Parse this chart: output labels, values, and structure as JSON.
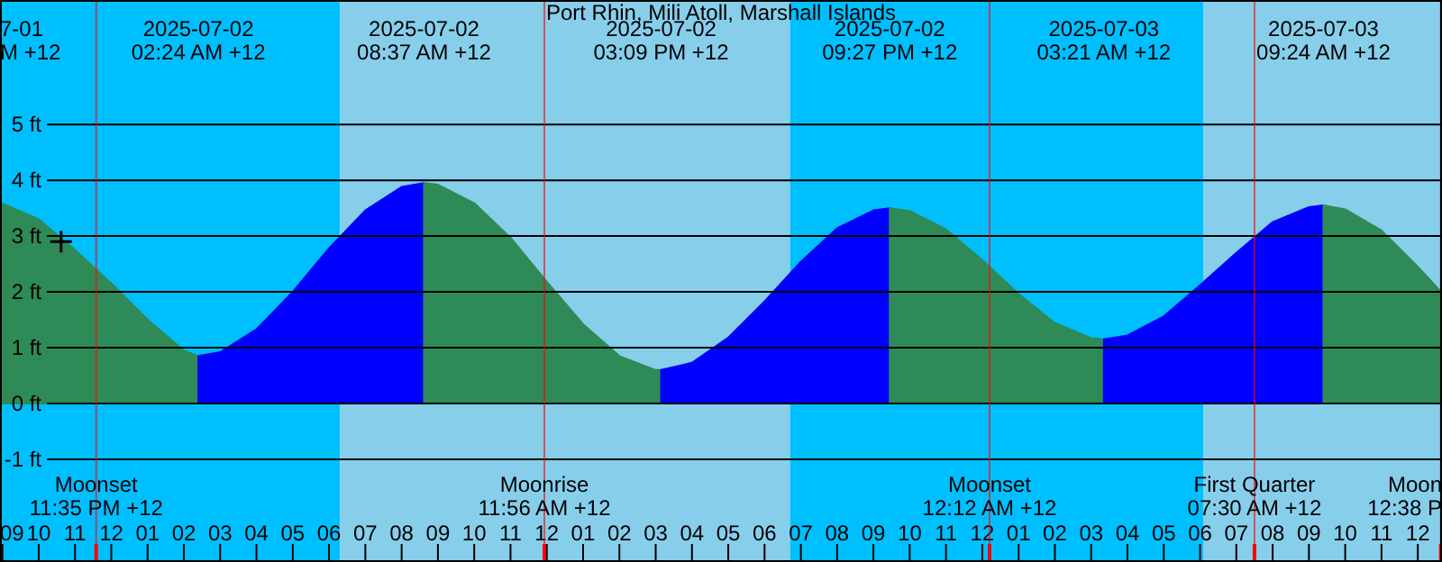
{
  "chart_data": {
    "type": "area",
    "title": "Port Rhin, Mili Atoll, Marshall Islands",
    "xlim": [
      "2025-07-01T20:56",
      "2025-07-03T12:40"
    ],
    "ylim": [
      -2.84,
      7.23
    ],
    "xticks": [
      {
        "value": "2025-07-01T21:00",
        "label": "09"
      },
      {
        "value": "2025-07-01T22:00",
        "label": "10"
      },
      {
        "value": "2025-07-01T23:00",
        "label": "11"
      },
      {
        "value": "2025-07-02T00:00",
        "label": "12"
      },
      {
        "value": "2025-07-02T01:00",
        "label": "01"
      },
      {
        "value": "2025-07-02T02:00",
        "label": "02"
      },
      {
        "value": "2025-07-02T03:00",
        "label": "03"
      },
      {
        "value": "2025-07-02T04:00",
        "label": "04"
      },
      {
        "value": "2025-07-02T05:00",
        "label": "05"
      },
      {
        "value": "2025-07-02T06:00",
        "label": "06"
      },
      {
        "value": "2025-07-02T07:00",
        "label": "07"
      },
      {
        "value": "2025-07-02T08:00",
        "label": "08"
      },
      {
        "value": "2025-07-02T09:00",
        "label": "09"
      },
      {
        "value": "2025-07-02T10:00",
        "label": "10"
      },
      {
        "value": "2025-07-02T11:00",
        "label": "11"
      },
      {
        "value": "2025-07-02T12:00",
        "label": "12"
      },
      {
        "value": "2025-07-02T13:00",
        "label": "01"
      },
      {
        "value": "2025-07-02T14:00",
        "label": "02"
      },
      {
        "value": "2025-07-02T15:00",
        "label": "03"
      },
      {
        "value": "2025-07-02T16:00",
        "label": "04"
      },
      {
        "value": "2025-07-02T17:00",
        "label": "05"
      },
      {
        "value": "2025-07-02T18:00",
        "label": "06"
      },
      {
        "value": "2025-07-02T19:00",
        "label": "07"
      },
      {
        "value": "2025-07-02T20:00",
        "label": "08"
      },
      {
        "value": "2025-07-02T21:00",
        "label": "09"
      },
      {
        "value": "2025-07-02T22:00",
        "label": "10"
      },
      {
        "value": "2025-07-02T23:00",
        "label": "11"
      },
      {
        "value": "2025-07-03T00:00",
        "label": "12"
      },
      {
        "value": "2025-07-03T01:00",
        "label": "01"
      },
      {
        "value": "2025-07-03T02:00",
        "label": "02"
      },
      {
        "value": "2025-07-03T03:00",
        "label": "03"
      },
      {
        "value": "2025-07-03T04:00",
        "label": "04"
      },
      {
        "value": "2025-07-03T05:00",
        "label": "05"
      },
      {
        "value": "2025-07-03T06:00",
        "label": "06"
      },
      {
        "value": "2025-07-03T07:00",
        "label": "07"
      },
      {
        "value": "2025-07-03T08:00",
        "label": "08"
      },
      {
        "value": "2025-07-03T09:00",
        "label": "09"
      },
      {
        "value": "2025-07-03T10:00",
        "label": "10"
      },
      {
        "value": "2025-07-03T11:00",
        "label": "11"
      },
      {
        "value": "2025-07-03T12:00",
        "label": "12"
      }
    ],
    "yticks": [
      {
        "value": -1,
        "label": "-1 ft"
      },
      {
        "value": 0,
        "label": "0 ft"
      },
      {
        "value": 1,
        "label": "1 ft"
      },
      {
        "value": 2,
        "label": "2 ft"
      },
      {
        "value": 3,
        "label": "3 ft"
      },
      {
        "value": 4,
        "label": "4 ft"
      },
      {
        "value": 5,
        "label": "5 ft"
      }
    ],
    "grid": "y",
    "bands": [
      {
        "axis": "x",
        "from": "2025-07-01T20:56",
        "to": "2025-07-02T06:18",
        "color": "#00bfff"
      },
      {
        "axis": "x",
        "from": "2025-07-02T06:18",
        "to": "2025-07-02T18:42",
        "color": "#87ceeb"
      },
      {
        "axis": "x",
        "from": "2025-07-02T18:42",
        "to": "2025-07-03T06:06",
        "color": "#00bfff"
      },
      {
        "axis": "x",
        "from": "2025-07-03T06:06",
        "to": "2025-07-03T12:40",
        "color": "#87ceeb"
      }
    ],
    "series": [
      {
        "color": "#2e8b57",
        "x": [
          "2025-07-01T20:56",
          "2025-07-01T22:00",
          "2025-07-01T23:00",
          "2025-07-02T00:00",
          "2025-07-02T01:00",
          "2025-07-02T02:00",
          "2025-07-02T02:24"
        ],
        "values": [
          3.6,
          3.3,
          2.75,
          2.15,
          1.5,
          0.95,
          0.85
        ]
      },
      {
        "color": "#0000ff",
        "x": [
          "2025-07-02T02:24",
          "2025-07-02T03:00",
          "2025-07-02T04:00",
          "2025-07-02T05:00",
          "2025-07-02T06:00",
          "2025-07-02T07:00",
          "2025-07-02T08:00",
          "2025-07-02T08:37"
        ],
        "values": [
          0.85,
          0.92,
          1.33,
          2.0,
          2.78,
          3.46,
          3.88,
          3.95
        ]
      },
      {
        "color": "#2e8b57",
        "x": [
          "2025-07-02T08:37",
          "2025-07-02T09:00",
          "2025-07-02T10:00",
          "2025-07-02T11:00",
          "2025-07-02T12:00",
          "2025-07-02T13:00",
          "2025-07-02T14:00",
          "2025-07-02T15:00",
          "2025-07-02T15:09"
        ],
        "values": [
          3.95,
          3.92,
          3.59,
          2.97,
          2.18,
          1.42,
          0.85,
          0.6,
          0.6
        ]
      },
      {
        "color": "#0000ff",
        "x": [
          "2025-07-02T15:09",
          "2025-07-02T16:00",
          "2025-07-02T17:00",
          "2025-07-02T18:00",
          "2025-07-02T19:00",
          "2025-07-02T20:00",
          "2025-07-02T21:00",
          "2025-07-02T21:27"
        ],
        "values": [
          0.6,
          0.73,
          1.18,
          1.83,
          2.54,
          3.14,
          3.46,
          3.5
        ]
      },
      {
        "color": "#2e8b57",
        "x": [
          "2025-07-02T21:27",
          "2025-07-02T22:00",
          "2025-07-02T23:00",
          "2025-07-03T00:00",
          "2025-07-03T01:00",
          "2025-07-03T02:00",
          "2025-07-03T03:00",
          "2025-07-03T03:21"
        ],
        "values": [
          3.5,
          3.45,
          3.12,
          2.57,
          1.96,
          1.44,
          1.17,
          1.15
        ]
      },
      {
        "color": "#0000ff",
        "x": [
          "2025-07-03T03:21",
          "2025-07-03T04:00",
          "2025-07-03T05:00",
          "2025-07-03T06:00",
          "2025-07-03T07:00",
          "2025-07-03T08:00",
          "2025-07-03T09:00",
          "2025-07-03T09:24"
        ],
        "values": [
          1.15,
          1.22,
          1.56,
          2.12,
          2.7,
          3.25,
          3.52,
          3.55
        ]
      },
      {
        "color": "#2e8b57",
        "x": [
          "2025-07-03T09:24",
          "2025-07-03T10:00",
          "2025-07-03T11:00",
          "2025-07-03T12:00",
          "2025-07-03T12:40"
        ],
        "values": [
          3.55,
          3.48,
          3.1,
          2.45,
          1.98
        ]
      },
      {
        "type": "scatter",
        "marker": "cross",
        "color": "#000000",
        "x": [
          "2025-07-01T22:37"
        ],
        "values": [
          2.9
        ]
      }
    ],
    "annotations": [
      "7-01\nM +12",
      "2025-07-02\n02:24 AM +12",
      "2025-07-02\n08:37 AM +12",
      "2025-07-02\n03:09 PM +12",
      "2025-07-02\n09:27 PM +12",
      "2025-07-03\n03:21 AM +12",
      "2025-07-03\n09:24 AM +12"
    ],
    "ref_lines": [
      {
        "axis": "x",
        "value": "2025-07-01T23:35",
        "label": "Moonset\n11:35 PM +12",
        "color": "#ff0000"
      },
      {
        "axis": "x",
        "value": "2025-07-02T11:56",
        "label": "Moonrise\n11:56 AM +12",
        "color": "#ff0000"
      },
      {
        "axis": "x",
        "value": "2025-07-03T00:12",
        "label": "Moonset\n12:12 AM +12",
        "color": "#ff0000"
      },
      {
        "axis": "x",
        "value": "2025-07-03T07:30",
        "label": "First Quarter\n07:30 AM +12",
        "color": "#ff0000"
      },
      {
        "axis": "x",
        "value": "2025-07-03T12:38",
        "label": "Moon\n12:38 P",
        "color": "#ff0000"
      }
    ]
  }
}
